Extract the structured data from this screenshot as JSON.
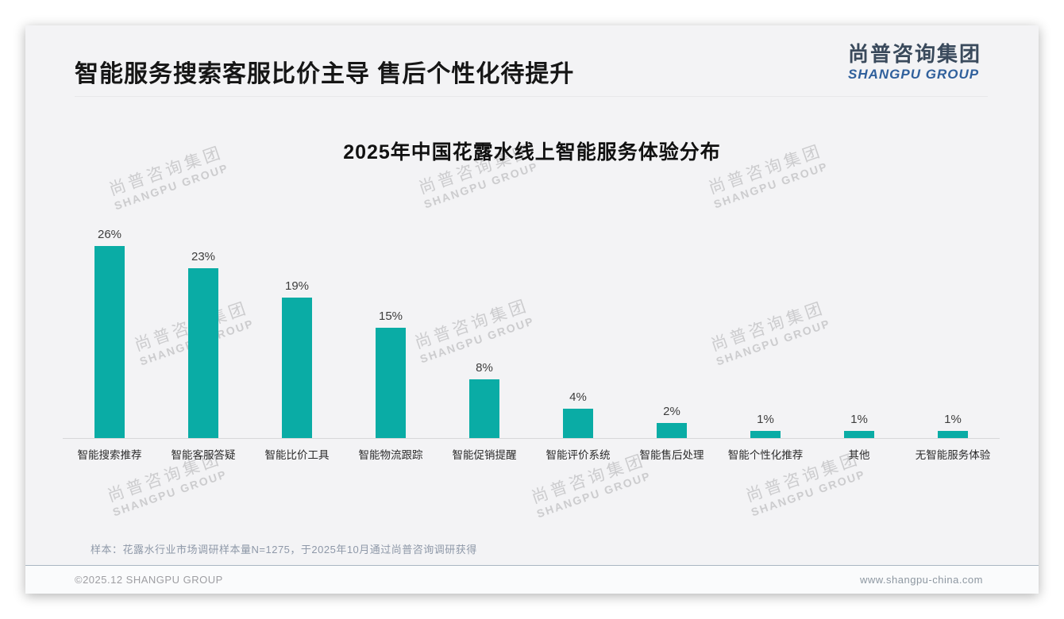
{
  "header": {
    "title": "智能服务搜索客服比价主导 售后个性化待提升",
    "logo": {
      "cn": "尚普咨询集团",
      "en": "SHANGPU GROUP"
    }
  },
  "chart_data": {
    "type": "bar",
    "title": "2025年中国花露水线上智能服务体验分布",
    "categories": [
      "智能搜索推荐",
      "智能客服答疑",
      "智能比价工具",
      "智能物流跟踪",
      "智能促销提醒",
      "智能评价系统",
      "智能售后处理",
      "智能个性化推荐",
      "其他",
      "无智能服务体验"
    ],
    "values": [
      26,
      23,
      19,
      15,
      8,
      4,
      2,
      1,
      1,
      1
    ],
    "value_labels": [
      "26%",
      "23%",
      "19%",
      "15%",
      "8%",
      "4%",
      "2%",
      "1%",
      "1%",
      "1%"
    ],
    "unit": "%",
    "bar_color": "#0aaca5",
    "ylim": [
      0,
      28
    ],
    "grid": false,
    "legend": null,
    "xlabel": "",
    "ylabel": ""
  },
  "watermark": {
    "line1": "尚普咨询集团",
    "line2": "SHANGPU GROUP"
  },
  "footnote": "样本：花露水行业市场调研样本量N=1275，于2025年10月通过尚普咨询调研获得",
  "footer": {
    "left": "©2025.12 SHANGPU GROUP",
    "right": "www.shangpu-china.com"
  }
}
